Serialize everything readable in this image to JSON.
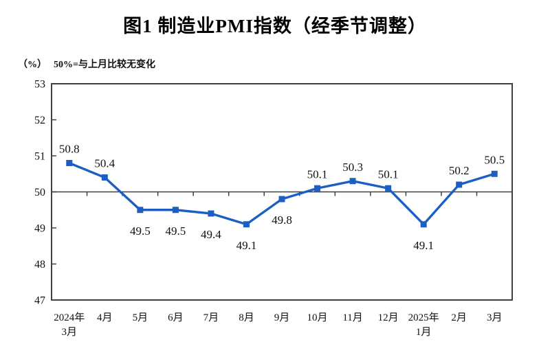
{
  "chart_data": {
    "type": "line",
    "title": "图1  制造业PMI指数（经季节调整）",
    "unit_label": "（%）",
    "note": "50%=与上月比较无变化",
    "categories": [
      "2024年\n3月",
      "4月",
      "5月",
      "6月",
      "7月",
      "8月",
      "9月",
      "10月",
      "11月",
      "12月",
      "2025年\n1月",
      "2月",
      "3月"
    ],
    "values": [
      50.8,
      50.4,
      49.5,
      49.5,
      49.4,
      49.1,
      49.8,
      50.1,
      50.3,
      50.1,
      49.1,
      50.2,
      50.5
    ],
    "ylabel_ticks": [
      47,
      48,
      49,
      50,
      51,
      52,
      53
    ],
    "ylim": [
      47,
      53
    ],
    "reference_line": 50,
    "reference_line_meaning": "50%=与上月比较无变化",
    "data_labels": true,
    "grid": false,
    "legend": "none",
    "line_color": "#1b5fc4",
    "axis_color": "#3f3f3f",
    "text_color": "#111111"
  }
}
